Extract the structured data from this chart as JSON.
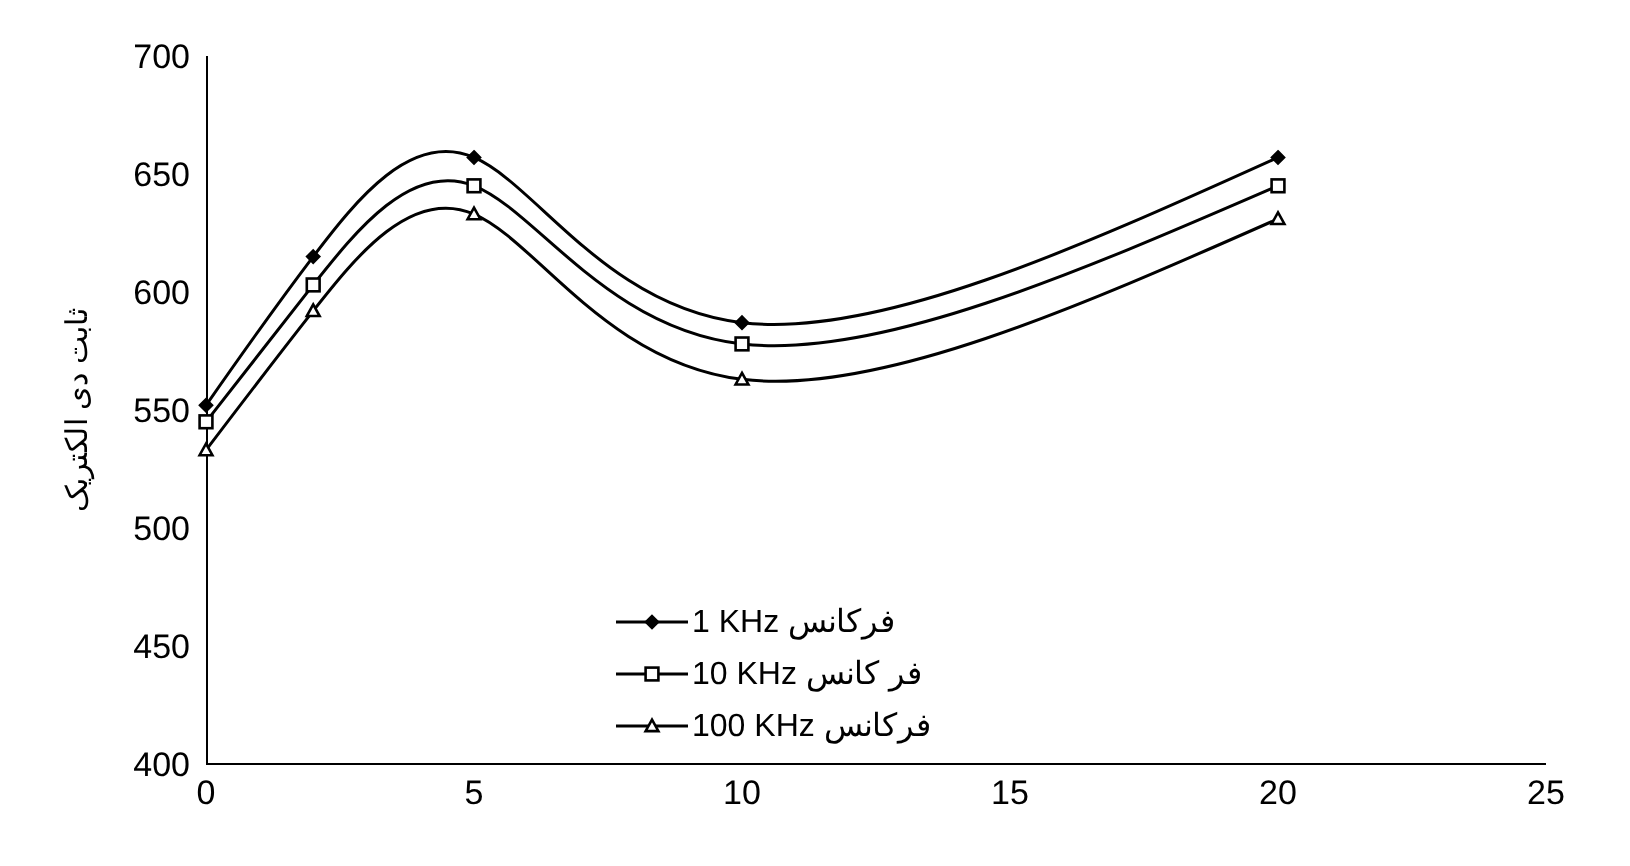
{
  "chart_data": {
    "type": "line",
    "ylabel": "ثابت دی الکتریک",
    "x": [
      0,
      2,
      5,
      10,
      20
    ],
    "xlim": [
      0,
      25
    ],
    "xticks": [
      0,
      5,
      10,
      15,
      20,
      25
    ],
    "ylim": [
      400,
      700
    ],
    "yticks": [
      400,
      450,
      500,
      550,
      600,
      650,
      700
    ],
    "legend": "bottom",
    "grid": false,
    "line_style": "solid",
    "series": [
      {
        "name": "1 KHz فرکانس",
        "color": "#000000",
        "marker": "diamond",
        "values": [
          552,
          615,
          657,
          587,
          657
        ]
      },
      {
        "name": "10 KHz فر کانس",
        "color": "#000000",
        "marker": "square",
        "values": [
          545,
          603,
          645,
          578,
          645
        ]
      },
      {
        "name": "100 KHz فرکانس",
        "color": "#000000",
        "marker": "triangle",
        "values": [
          533,
          592,
          633,
          563,
          631
        ]
      }
    ]
  }
}
